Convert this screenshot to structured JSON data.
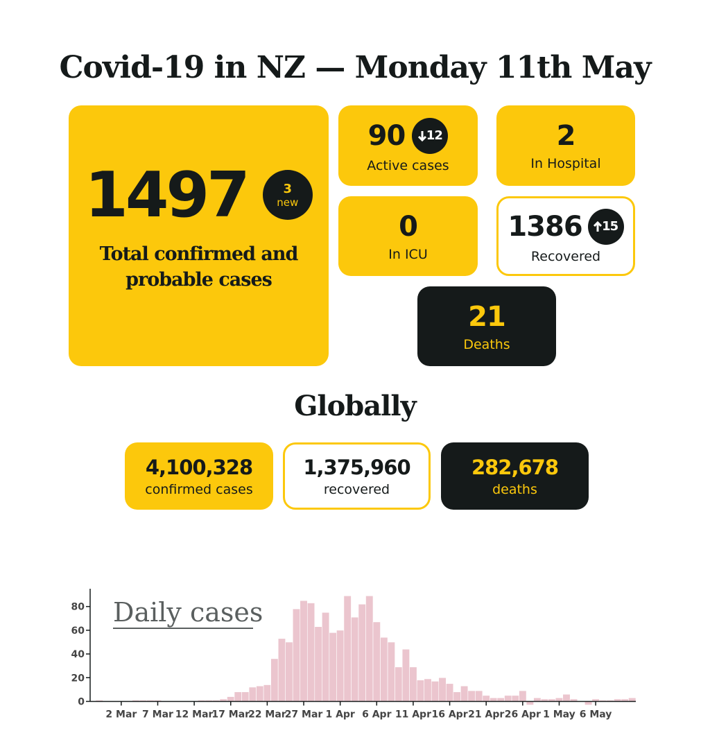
{
  "header": {
    "title": "Covid-19 in NZ — Monday 11th May"
  },
  "nz": {
    "total": {
      "value": 1497,
      "new_count": 3,
      "new_label": "new",
      "label": "Total confirmed and probable cases"
    },
    "active": {
      "value": 90,
      "change": 12,
      "label": "Active cases"
    },
    "hospital": {
      "value": 2,
      "label": "In Hospital"
    },
    "icu": {
      "value": 0,
      "label": "In ICU"
    },
    "recovered": {
      "value": 1386,
      "change": 15,
      "label": "Recovered"
    },
    "deaths": {
      "value": 21,
      "label": "Deaths"
    }
  },
  "globally": {
    "title": "Globally",
    "confirmed": {
      "value": "4,100,328",
      "label": "confirmed cases"
    },
    "recovered": {
      "value": "1,375,960",
      "label": "recovered"
    },
    "deaths": {
      "value": "282,678",
      "label": "deaths"
    }
  },
  "chart_data": {
    "type": "bar",
    "title": "Daily cases",
    "color": "#ebc5ce",
    "categories": [
      null,
      null,
      null,
      "2 Mar",
      null,
      null,
      null,
      null,
      "7 Mar",
      null,
      null,
      null,
      null,
      "12 Mar",
      null,
      null,
      null,
      null,
      "17 Mar",
      null,
      null,
      null,
      null,
      "22 Mar",
      null,
      null,
      null,
      null,
      "27 Mar",
      null,
      null,
      null,
      null,
      "1 Apr",
      null,
      null,
      null,
      null,
      "6 Apr",
      null,
      null,
      null,
      null,
      "11 Apr",
      null,
      null,
      null,
      null,
      "16 Apr",
      null,
      null,
      null,
      null,
      "21 Apr",
      null,
      null,
      null,
      null,
      "26 Apr",
      null,
      null,
      null,
      null,
      "1 May",
      null,
      null,
      null,
      null,
      "6 May",
      null,
      null,
      null,
      null,
      null
    ],
    "values": [
      1,
      0,
      0,
      0,
      0,
      1,
      1,
      1,
      1,
      0,
      0,
      0,
      0,
      0,
      1,
      1,
      1,
      2,
      4,
      8,
      8,
      12,
      13,
      14,
      36,
      53,
      50,
      78,
      85,
      83,
      63,
      75,
      58,
      60,
      89,
      71,
      82,
      89,
      67,
      54,
      50,
      29,
      44,
      29,
      18,
      19,
      17,
      20,
      15,
      8,
      13,
      9,
      9,
      5,
      3,
      3,
      5,
      5,
      9,
      -3,
      3,
      2,
      2,
      3,
      6,
      2,
      0,
      -3,
      2,
      1,
      1,
      2,
      2,
      3
    ],
    "ylim": [
      -5,
      95
    ],
    "yticks": [
      0,
      20,
      40,
      60,
      80
    ]
  }
}
